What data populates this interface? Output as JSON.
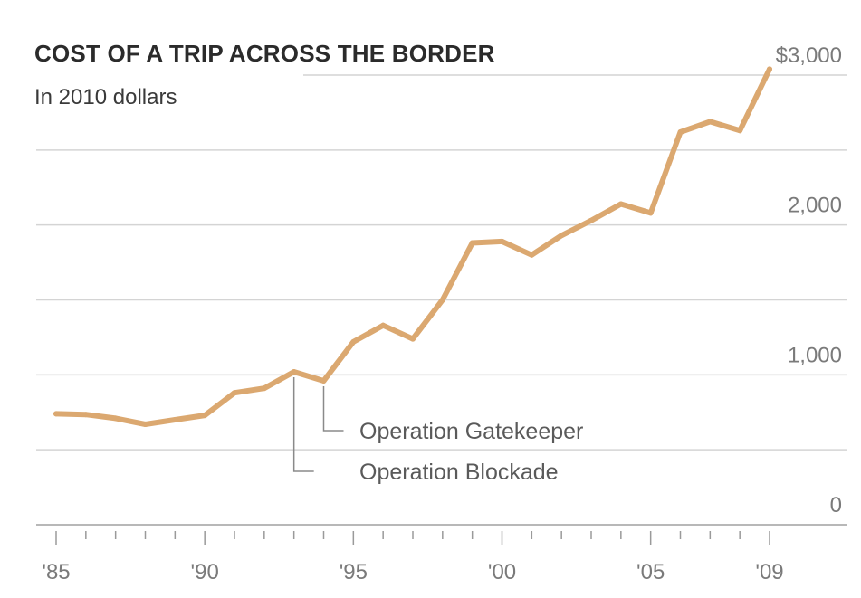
{
  "chart_data": {
    "type": "line",
    "title": "COST OF A TRIP ACROSS THE BORDER",
    "subtitle": "In 2010 dollars",
    "xlabel": "",
    "ylabel": "",
    "ylim": [
      0,
      3000
    ],
    "xlim": [
      1985,
      2009
    ],
    "y_ticks": [
      0,
      1000,
      2000,
      3000
    ],
    "y_tick_labels": [
      "0",
      "1,000",
      "2,000",
      "$3,000"
    ],
    "x_tick_labels": [
      {
        "value": 1985,
        "label": "'85"
      },
      {
        "value": 1990,
        "label": "'90"
      },
      {
        "value": 1995,
        "label": "'95"
      },
      {
        "value": 2000,
        "label": "'00"
      },
      {
        "value": 2005,
        "label": "'05"
      },
      {
        "value": 2009,
        "label": "'09"
      }
    ],
    "grid": "horizontal",
    "line_color": "#dba870",
    "series": [
      {
        "x": [
          1985,
          1986,
          1987,
          1988,
          1989,
          1990,
          1991,
          1992,
          1993,
          1994,
          1995,
          1996,
          1997,
          1998,
          1999,
          2000,
          2001,
          2002,
          2003,
          2004,
          2005,
          2006,
          2007,
          2008,
          2009
        ],
        "values": [
          740,
          735,
          710,
          670,
          700,
          730,
          880,
          910,
          1020,
          960,
          1220,
          1330,
          1240,
          1500,
          1880,
          1890,
          1800,
          1930,
          2030,
          2140,
          2080,
          2620,
          2690,
          2630,
          3040
        ]
      }
    ],
    "annotations": [
      {
        "x": 1993,
        "label": "Operation Blockade"
      },
      {
        "x": 1994,
        "label": "Operation Gatekeeper"
      }
    ]
  }
}
